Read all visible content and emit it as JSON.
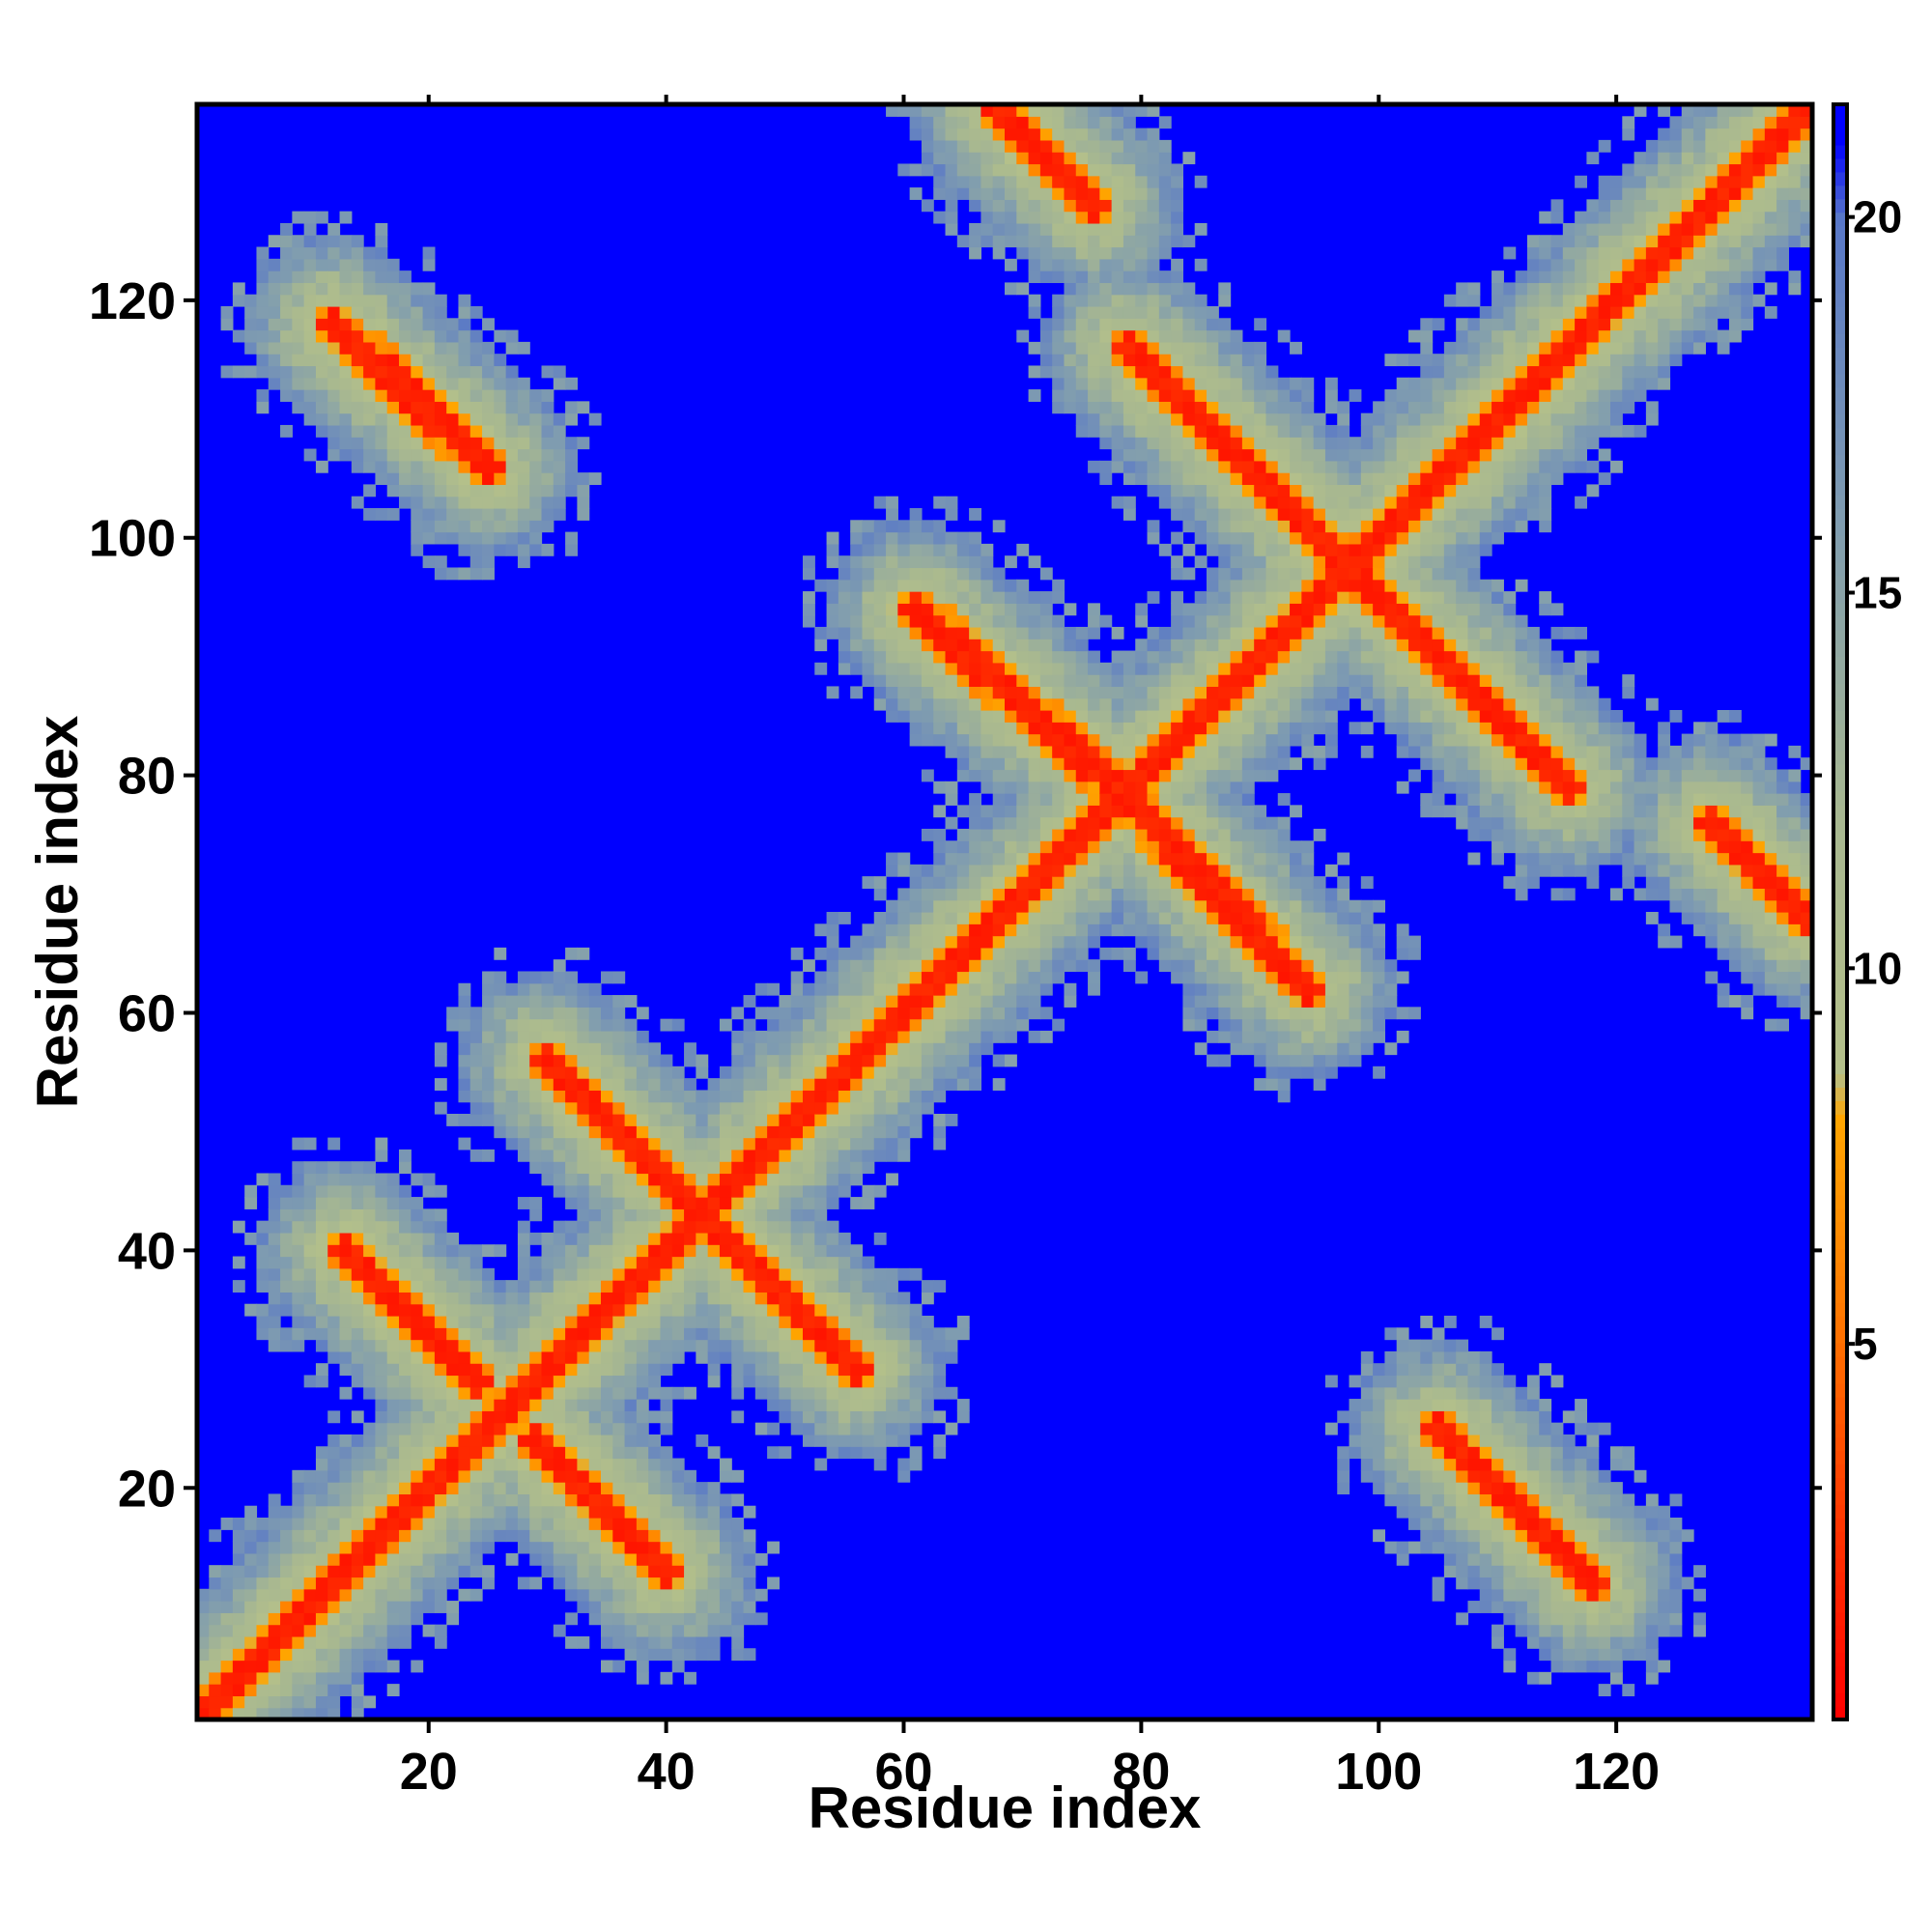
{
  "chart_data": {
    "type": "heatmap",
    "title": "",
    "xlabel": "Residue index",
    "ylabel": "Residue index",
    "n_residues": 136,
    "xlim": [
      0.5,
      136.5
    ],
    "ylim": [
      0.5,
      136.5
    ],
    "x_ticks": [
      20,
      40,
      60,
      80,
      100,
      120
    ],
    "y_ticks": [
      20,
      40,
      60,
      80,
      100,
      120
    ],
    "colorbar": {
      "range": [
        0,
        21.5
      ],
      "ticks": [
        5,
        10,
        15,
        20
      ],
      "stops": [
        {
          "value": 0,
          "color": "#ff0000"
        },
        {
          "value": 2.5,
          "color": "#ff3300"
        },
        {
          "value": 5.5,
          "color": "#ff7a00"
        },
        {
          "value": 8,
          "color": "#ffa500"
        },
        {
          "value": 8.6,
          "color": "#b4c08a"
        },
        {
          "value": 12,
          "color": "#a8b890"
        },
        {
          "value": 16,
          "color": "#7f9cb0"
        },
        {
          "value": 20,
          "color": "#5877c8"
        },
        {
          "value": 21,
          "color": "#0000ff"
        }
      ],
      "background_color": "#0000ff"
    },
    "grid": false,
    "contact_segments": [
      {
        "name": "diagonal",
        "type": "parallel",
        "start": [
          1,
          1
        ],
        "end": [
          136,
          136
        ]
      },
      {
        "type": "antiparallel",
        "start": [
          13,
          40
        ],
        "end": [
          24,
          29
        ]
      },
      {
        "type": "antiparallel",
        "start": [
          29,
          24
        ],
        "end": [
          40,
          13
        ]
      },
      {
        "type": "antiparallel",
        "start": [
          30,
          56
        ],
        "end": [
          42,
          44
        ]
      },
      {
        "type": "antiparallel",
        "start": [
          44,
          42
        ],
        "end": [
          56,
          30
        ]
      },
      {
        "type": "antiparallel",
        "start": [
          61,
          94
        ],
        "end": [
          79,
          78
        ]
      },
      {
        "type": "antiparallel",
        "start": [
          78,
          79
        ],
        "end": [
          94,
          62
        ]
      },
      {
        "type": "antiparallel",
        "start": [
          79,
          116
        ],
        "end": [
          97,
          98
        ]
      },
      {
        "type": "antiparallel",
        "start": [
          98,
          97
        ],
        "end": [
          116,
          79
        ]
      },
      {
        "type": "antiparallel",
        "start": [
          12,
          118
        ],
        "end": [
          25,
          106
        ]
      },
      {
        "type": "antiparallel",
        "start": [
          68,
          136
        ],
        "end": [
          76,
          128
        ]
      },
      {
        "type": "antiparallel",
        "start": [
          128,
          76
        ],
        "end": [
          136,
          68
        ]
      },
      {
        "type": "antiparallel",
        "start": [
          105,
          25
        ],
        "end": [
          118,
          12
        ]
      }
    ]
  }
}
